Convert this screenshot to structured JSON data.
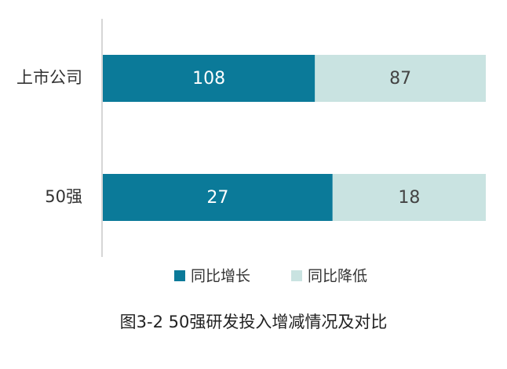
{
  "chart_data": {
    "type": "bar",
    "orientation": "horizontal",
    "stacked": "percent",
    "title": "图3-2 50强研发投入增减情况及对比",
    "categories": [
      "上市公司",
      "50强"
    ],
    "series": [
      {
        "name": "同比增长",
        "color": "#0b7a99",
        "values": [
          108,
          27
        ]
      },
      {
        "name": "同比降低",
        "color": "#c9e3e1",
        "values": [
          87,
          18
        ]
      }
    ],
    "legend": "bottom"
  }
}
